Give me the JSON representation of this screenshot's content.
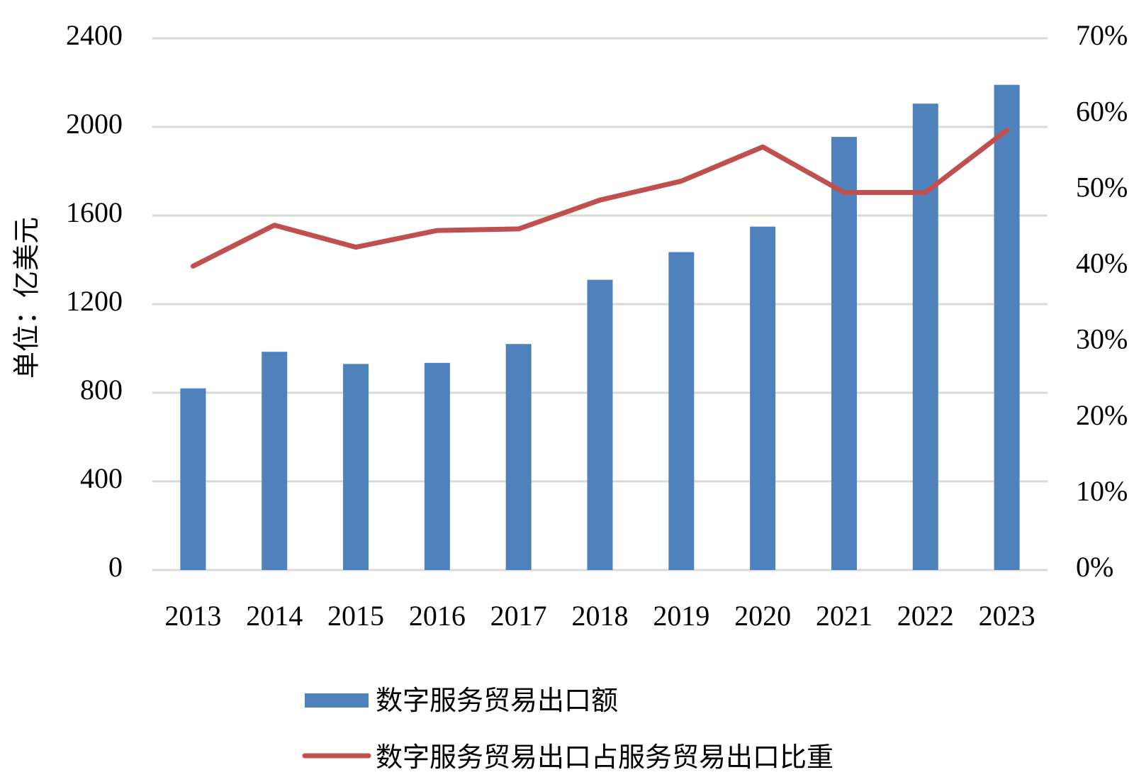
{
  "chart_data": {
    "type": "bar",
    "categories": [
      "2013",
      "2014",
      "2015",
      "2016",
      "2017",
      "2018",
      "2019",
      "2020",
      "2021",
      "2022",
      "2023"
    ],
    "series": [
      {
        "name": "数字服务贸易出口额",
        "type": "bar",
        "axis": "left",
        "values": [
          820,
          985,
          930,
          935,
          1020,
          1310,
          1435,
          1550,
          1955,
          2105,
          2190
        ]
      },
      {
        "name": "数字服务贸易出口占服务贸易出口比重",
        "type": "line",
        "axis": "right",
        "values": [
          0.4,
          0.454,
          0.425,
          0.447,
          0.449,
          0.487,
          0.512,
          0.557,
          0.497,
          0.497,
          0.579
        ]
      }
    ],
    "ylabel": "单位：亿美元",
    "ylim": [
      0,
      2400
    ],
    "yticks": [
      "0",
      "400",
      "800",
      "1200",
      "1600",
      "2000",
      "2400"
    ],
    "y2lim": [
      0,
      0.7
    ],
    "y2ticks": [
      "0%",
      "10%",
      "20%",
      "30%",
      "40%",
      "50%",
      "60%",
      "70%"
    ],
    "grid": true,
    "legend_position": "bottom",
    "colors": {
      "bar": "#4f81bd",
      "line": "#c0504d",
      "grid": "#d9d9d9"
    }
  }
}
